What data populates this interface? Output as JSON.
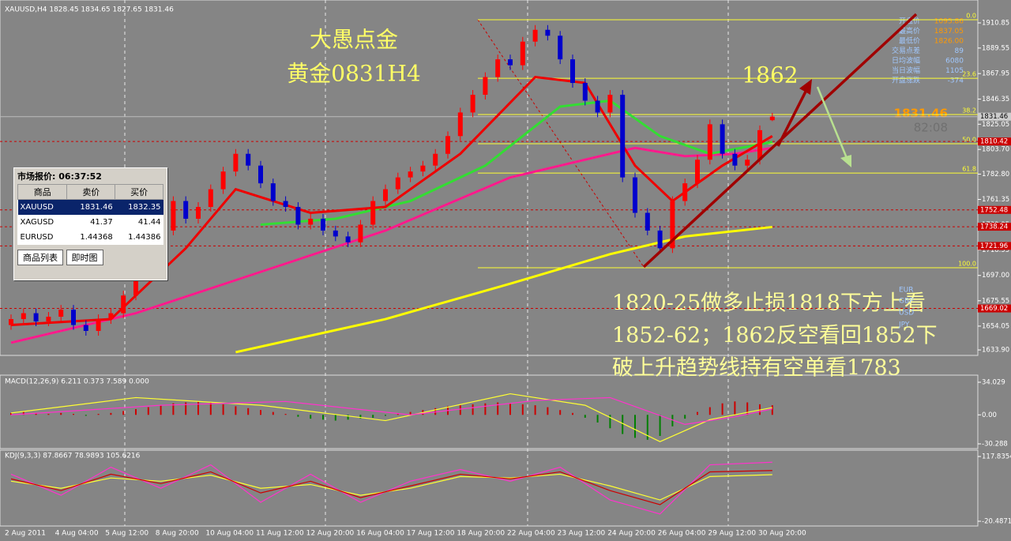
{
  "window": {
    "title": "XAUUSD,H4  1828.45 1834.65 1827.65 1831.46"
  },
  "annotations": {
    "brand": "大愚点金",
    "chart_name": "黄金0831H4",
    "target": "1862",
    "big_price": "1831.46",
    "countdown": "82:08",
    "notes": [
      "1820-25做多止损1818下方上看",
      "1852-62；1862反空看回1852下",
      "破上升趋势线持有空单看1783"
    ],
    "currencies": [
      "EUR",
      "GBP",
      "USD",
      "JPY"
    ]
  },
  "info_panel": [
    [
      "开盘价",
      "1095.86"
    ],
    [
      "最高价",
      "1837.05"
    ],
    [
      "最低价",
      "1826.00"
    ],
    [
      "交易点差",
      "89"
    ],
    [
      "日均波幅",
      "6080"
    ],
    [
      "当日波幅",
      "1105"
    ],
    [
      "开盘涨跌",
      "-374"
    ]
  ],
  "market_watch": {
    "title": "市场报价: 06:37:52",
    "headers": [
      "商品",
      "卖价",
      "买价"
    ],
    "rows": [
      [
        "XAUUSD",
        "1831.46",
        "1832.35"
      ],
      [
        "XAGUSD",
        "41.37",
        "41.44"
      ],
      [
        "EURUSD",
        "1.44368",
        "1.44386"
      ]
    ],
    "tabs": [
      "商品列表",
      "即时图"
    ]
  },
  "x_labels": [
    "2 Aug 2011",
    "4 Aug 04:00",
    "5 Aug 12:00",
    "8 Aug 20:00",
    "10 Aug 04:00",
    "11 Aug 12:00",
    "12 Aug 20:00",
    "16 Aug 04:00",
    "17 Aug 12:00",
    "18 Aug 20:00",
    "22 Aug 04:00",
    "23 Aug 12:00",
    "24 Aug 20:00",
    "26 Aug 04:00",
    "29 Aug 12:00",
    "30 Aug 20:00"
  ],
  "chart_data": [
    {
      "type": "candlestick",
      "up_color": "#ff0000",
      "down_color": "#0000cc",
      "ylim": [
        1630.6,
        1924.9
      ],
      "yticks": [
        1910.85,
        1889.55,
        1867.95,
        1846.35,
        1825.05,
        {
          "value": 1803.7,
          "label": "1803.70"
        },
        {
          "value": 1782.8,
          "label": "1782.80"
        },
        1761.35,
        1739.95,
        1718.55,
        {
          "value": 1697,
          "label": "1697.00"
        },
        1675.55,
        1654.05,
        {
          "value": 1633.9,
          "label": "1633.90"
        }
      ],
      "ohlc": [
        [
          1655,
          1664,
          1651,
          1660
        ],
        [
          1660,
          1669,
          1656,
          1665
        ],
        [
          1665,
          1669,
          1654,
          1658
        ],
        [
          1658,
          1666,
          1654,
          1662
        ],
        [
          1662,
          1672,
          1658,
          1668
        ],
        [
          1668,
          1672,
          1651,
          1655
        ],
        [
          1655,
          1659,
          1646,
          1650
        ],
        [
          1650,
          1664,
          1646,
          1660
        ],
        [
          1660,
          1669,
          1656,
          1665
        ],
        [
          1665,
          1684,
          1661,
          1680
        ],
        [
          1680,
          1704,
          1676,
          1700
        ],
        [
          1700,
          1719,
          1696,
          1715
        ],
        [
          1715,
          1739,
          1711,
          1735
        ],
        [
          1735,
          1764,
          1731,
          1760
        ],
        [
          1760,
          1764,
          1741,
          1745
        ],
        [
          1745,
          1759,
          1741,
          1755
        ],
        [
          1755,
          1774,
          1751,
          1770
        ],
        [
          1770,
          1789,
          1766,
          1785
        ],
        [
          1785,
          1804,
          1781,
          1800
        ],
        [
          1800,
          1804,
          1786,
          1790
        ],
        [
          1790,
          1794,
          1771,
          1775
        ],
        [
          1775,
          1779,
          1756,
          1760
        ],
        [
          1760,
          1764,
          1751,
          1755
        ],
        [
          1755,
          1759,
          1736,
          1740
        ],
        [
          1740,
          1749,
          1736,
          1745
        ],
        [
          1745,
          1749,
          1731,
          1735
        ],
        [
          1735,
          1739,
          1726,
          1730
        ],
        [
          1730,
          1734,
          1721,
          1725
        ],
        [
          1725,
          1744,
          1721,
          1740
        ],
        [
          1740,
          1764,
          1736,
          1760
        ],
        [
          1760,
          1774,
          1756,
          1770
        ],
        [
          1770,
          1784,
          1766,
          1780
        ],
        [
          1780,
          1789,
          1776,
          1785
        ],
        [
          1785,
          1794,
          1781,
          1790
        ],
        [
          1790,
          1804,
          1786,
          1800
        ],
        [
          1800,
          1819,
          1796,
          1815
        ],
        [
          1815,
          1839,
          1811,
          1835
        ],
        [
          1835,
          1854,
          1831,
          1850
        ],
        [
          1850,
          1869,
          1846,
          1865
        ],
        [
          1865,
          1884,
          1861,
          1880
        ],
        [
          1880,
          1884,
          1871,
          1875
        ],
        [
          1875,
          1899,
          1871,
          1895
        ],
        [
          1895,
          1909,
          1891,
          1905
        ],
        [
          1905,
          1909,
          1896,
          1900
        ],
        [
          1900,
          1904,
          1876,
          1880
        ],
        [
          1880,
          1884,
          1856,
          1860
        ],
        [
          1860,
          1864,
          1841,
          1845
        ],
        [
          1845,
          1849,
          1831,
          1835
        ],
        [
          1835,
          1854,
          1831,
          1850
        ],
        [
          1850,
          1854,
          1776,
          1780
        ],
        [
          1780,
          1784,
          1746,
          1750
        ],
        [
          1750,
          1754,
          1731,
          1735
        ],
        [
          1735,
          1739,
          1716,
          1720
        ],
        [
          1720,
          1764,
          1716,
          1760
        ],
        [
          1760,
          1779,
          1756,
          1775
        ],
        [
          1775,
          1799,
          1771,
          1795
        ],
        [
          1795,
          1829,
          1791,
          1825
        ],
        [
          1825,
          1829,
          1796,
          1800
        ],
        [
          1800,
          1804,
          1786,
          1790
        ],
        [
          1790,
          1799,
          1786,
          1795
        ],
        [
          1795,
          1824,
          1791,
          1820
        ],
        [
          1828.45,
          1834.65,
          1827.65,
          1831.46
        ]
      ],
      "series": [
        {
          "color": "#ffff00",
          "x": [
            18,
            30,
            40,
            48,
            54,
            61
          ],
          "values": [
            1632,
            1660,
            1690,
            1715,
            1730,
            1738
          ]
        },
        {
          "color": "#ff1a8c",
          "x": [
            0,
            10,
            20,
            30,
            40,
            50,
            54,
            58,
            61
          ],
          "values": [
            1640,
            1665,
            1700,
            1735,
            1780,
            1805,
            1798,
            1800,
            1805
          ]
        },
        {
          "color": "#33dd33",
          "x": [
            20,
            26,
            32,
            38,
            44,
            48,
            52,
            56,
            61
          ],
          "values": [
            1740,
            1745,
            1760,
            1790,
            1840,
            1845,
            1815,
            1800,
            1810
          ]
        },
        {
          "color": "#ee0000",
          "x": [
            0,
            8,
            14,
            18,
            24,
            30,
            36,
            42,
            46,
            50,
            53,
            57,
            61
          ],
          "values": [
            1655,
            1660,
            1720,
            1770,
            1750,
            1755,
            1800,
            1865,
            1860,
            1790,
            1760,
            1790,
            1815
          ]
        }
      ],
      "price_line": 1831.46,
      "levels": [
        1810.42,
        1752.48,
        1738.24,
        1721.96,
        1669.02
      ],
      "fib": {
        "high": 1913.5,
        "low": 1703.5,
        "levels": [
          {
            "value": 0,
            "label": "0.0"
          },
          23.6,
          38.2,
          {
            "value": 50,
            "label": "50.0"
          },
          61.8,
          {
            "value": 100,
            "label": "100.0"
          }
        ]
      }
    },
    {
      "type": "macd",
      "title": "MACD(12,26,9) 6.211 0.373 7.589 0.000",
      "up_color": "#cc0000",
      "down_color": "#008000",
      "ylim": [
        -30.288,
        34.029
      ],
      "yticks": [
        34.029,
        {
          "value": 0,
          "label": "0.00"
        },
        -30.288
      ],
      "values": [
        2,
        3,
        2,
        1,
        2,
        1,
        -1,
        1,
        2,
        4,
        6,
        8,
        10,
        12,
        13,
        14,
        13,
        11,
        9,
        7,
        5,
        3,
        1,
        -2,
        -4,
        -5,
        -6,
        -5,
        -4,
        -3,
        -1,
        1,
        3,
        5,
        7,
        9,
        10,
        11,
        12,
        13,
        12,
        11,
        10,
        8,
        5,
        2,
        -3,
        -8,
        -14,
        -20,
        -24,
        -26,
        -22,
        -12,
        -4,
        3,
        8,
        12,
        14,
        13,
        11,
        10
      ],
      "series": [
        {
          "color": "#ffff33",
          "x": [
            0,
            10,
            20,
            30,
            40,
            46,
            52,
            56,
            61
          ],
          "values": [
            2,
            18,
            10,
            -6,
            22,
            10,
            -28,
            -5,
            7.589
          ]
        },
        {
          "color": "#ff33cc",
          "x": [
            0,
            12,
            22,
            32,
            42,
            48,
            54,
            58,
            61
          ],
          "values": [
            0,
            10,
            14,
            0,
            15,
            18,
            -10,
            -2,
            6.2
          ]
        }
      ]
    },
    {
      "type": "line",
      "title": "KDJ(9,3,3) 87.8667 78.9893 105.6216",
      "ylim": [
        -20.4871,
        117.8354
      ],
      "yticks": [
        117.8354,
        -20.4871
      ],
      "series": [
        {
          "color": "#ff33cc",
          "x": [
            0,
            4,
            8,
            12,
            16,
            20,
            24,
            28,
            32,
            36,
            40,
            44,
            48,
            52,
            56,
            61
          ],
          "values": [
            80,
            35,
            95,
            50,
            100,
            20,
            80,
            20,
            65,
            90,
            65,
            95,
            25,
            -5,
            100,
            105.6216
          ]
        },
        {
          "color": "#ffff33",
          "x": [
            0,
            4,
            8,
            12,
            16,
            20,
            24,
            28,
            32,
            36,
            40,
            44,
            48,
            52,
            56,
            61
          ],
          "values": [
            65,
            50,
            72,
            65,
            78,
            50,
            58,
            35,
            50,
            75,
            72,
            80,
            55,
            25,
            75,
            78.9893
          ]
        },
        {
          "color": "#cc0000",
          "x": [
            0,
            4,
            8,
            12,
            16,
            20,
            24,
            28,
            32,
            36,
            40,
            44,
            48,
            52,
            56,
            61
          ],
          "values": [
            70,
            45,
            80,
            60,
            85,
            40,
            65,
            30,
            55,
            80,
            70,
            85,
            45,
            15,
            85,
            87.8667
          ]
        }
      ]
    }
  ]
}
